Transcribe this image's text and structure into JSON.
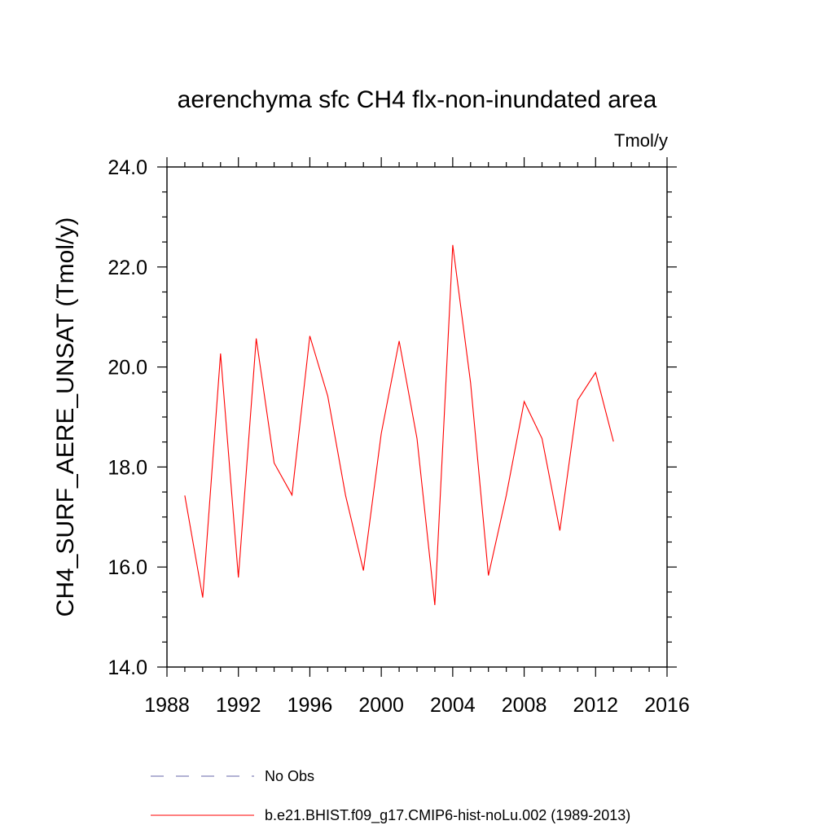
{
  "chart_data": {
    "type": "line",
    "title": "aerenchyma sfc CH4 flx-non-inundated area",
    "units": "Tmol/y",
    "ylabel": "CH4_SURF_AERE_UNSAT  (Tmol/y)",
    "xlabel": "",
    "xlim": [
      1988,
      2016
    ],
    "ylim": [
      14.0,
      24.0
    ],
    "xticks": [
      "1988",
      "1992",
      "1996",
      "2000",
      "2004",
      "2008",
      "2012",
      "2016"
    ],
    "yticks": [
      "14.0",
      "16.0",
      "18.0",
      "20.0",
      "22.0",
      "24.0"
    ],
    "grid": false,
    "legend_position": "bottom",
    "series": [
      {
        "name": "b.e21.BHIST.f09_g17.CMIP6-hist-noLu.002 (1989-2013)",
        "color": "#ff0000",
        "style": "solid",
        "x": [
          1989,
          1990,
          1991,
          1992,
          1993,
          1994,
          1995,
          1996,
          1997,
          1998,
          1999,
          2000,
          2001,
          2002,
          2003,
          2004,
          2005,
          2006,
          2007,
          2008,
          2009,
          2010,
          2011,
          2012,
          2013
        ],
        "y": [
          17.43,
          15.39,
          20.27,
          15.79,
          20.57,
          18.08,
          17.44,
          20.62,
          19.42,
          17.43,
          15.93,
          18.67,
          20.52,
          18.57,
          15.24,
          22.44,
          19.68,
          15.83,
          17.43,
          19.31,
          18.57,
          16.73,
          19.34,
          19.89,
          18.51
        ]
      }
    ],
    "legend": [
      {
        "label": "No Obs",
        "color": "#6666aa",
        "style": "dashed"
      },
      {
        "label": "b.e21.BHIST.f09_g17.CMIP6-hist-noLu.002 (1989-2013)",
        "color": "#ff0000",
        "style": "solid"
      }
    ]
  }
}
